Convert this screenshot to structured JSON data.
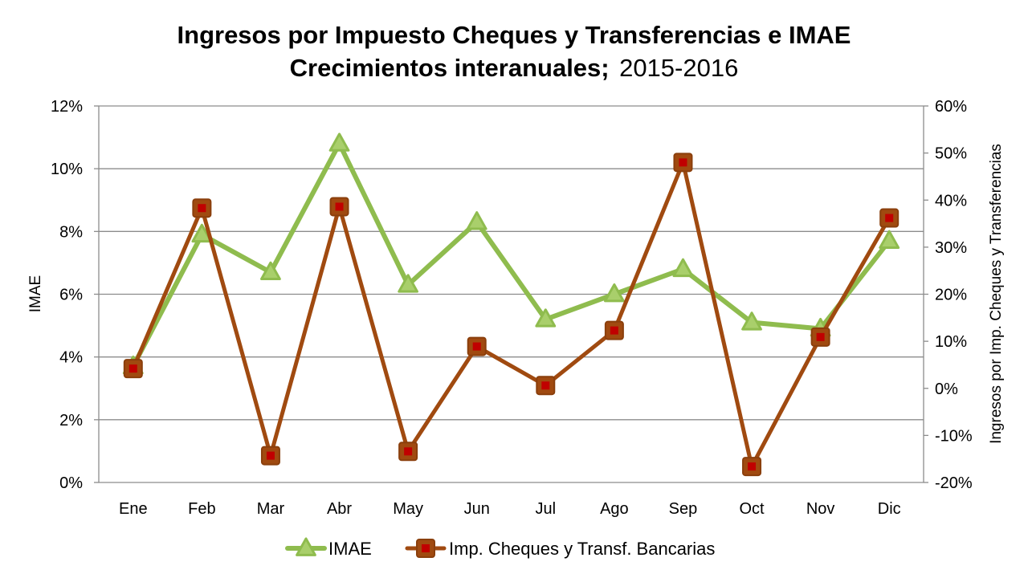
{
  "chart_data": {
    "type": "line",
    "title_bold_1": "Ingresos por Impuesto Cheques y Transferencias e IMAE",
    "title_bold_2": "Crecimientos interanuales;",
    "title_normal_2": "2015-2016",
    "categories": [
      "Ene",
      "Feb",
      "Mar",
      "Abr",
      "May",
      "Jun",
      "Jul",
      "Ago",
      "Sep",
      "Oct",
      "Nov",
      "Dic"
    ],
    "y_left": {
      "label": "IMAE",
      "ylim": [
        0,
        12
      ],
      "ticks": [
        0,
        2,
        4,
        6,
        8,
        10,
        12
      ],
      "tick_labels": [
        "0%",
        "2%",
        "4%",
        "6%",
        "8%",
        "10%",
        "12%"
      ]
    },
    "y_right": {
      "label": "Ingresos por Imp. Cheques y Transferencias",
      "ylim": [
        -20,
        60
      ],
      "ticks": [
        -20,
        -10,
        0,
        10,
        20,
        30,
        40,
        50,
        60
      ],
      "tick_labels": [
        "-20%",
        "-10%",
        "0%",
        "10%",
        "20%",
        "30%",
        "40%",
        "50%",
        "60%"
      ]
    },
    "grid": true,
    "legend_position": "bottom",
    "series": [
      {
        "name": "IMAE",
        "axis": "left",
        "color": "#8fbc4e",
        "marker": "triangle",
        "values": [
          3.7,
          7.9,
          6.7,
          10.8,
          6.3,
          8.3,
          5.2,
          6.0,
          6.8,
          5.1,
          4.9,
          7.7
        ]
      },
      {
        "name": "Imp. Cheques y Transf. Bancarias",
        "axis": "right",
        "color": "#a04a10",
        "marker_fill": "#c00000",
        "marker": "square",
        "values": [
          4.2,
          38.3,
          -14.3,
          38.6,
          -13.4,
          8.9,
          0.6,
          12.3,
          48.0,
          -16.6,
          10.9,
          36.2
        ]
      }
    ]
  }
}
